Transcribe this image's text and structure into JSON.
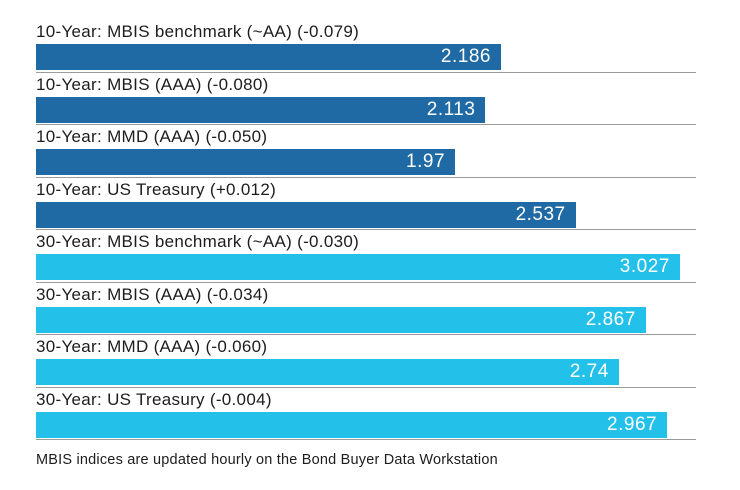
{
  "chart_data": {
    "type": "bar",
    "orientation": "horizontal",
    "title": "",
    "xlabel": "",
    "ylabel": "",
    "xlim": [
      0,
      3.1
    ],
    "grid": false,
    "legend": "none",
    "categories": [
      "10-Year: MBIS benchmark (~AA) (-0.079)",
      "10-Year: MBIS (AAA) (-0.080)",
      "10-Year: MMD (AAA) (-0.050)",
      "10-Year: US Treasury (+0.012)",
      "30-Year: MBIS benchmark (~AA) (-0.030)",
      "30-Year: MBIS (AAA) (-0.034)",
      "30-Year: MMD (AAA) (-0.060)",
      "30-Year: US Treasury (-0.004)"
    ],
    "values": [
      2.186,
      2.113,
      1.97,
      2.537,
      3.027,
      2.867,
      2.74,
      2.967
    ],
    "series": [
      {
        "name": "10-Year",
        "color": "#1f6aa4",
        "row_indexes": [
          0,
          1,
          2,
          3
        ]
      },
      {
        "name": "30-Year",
        "color": "#23c0e9",
        "row_indexes": [
          4,
          5,
          6,
          7
        ]
      }
    ],
    "colors": {
      "10-year": "#1f6aa4",
      "30-year": "#23c0e9"
    },
    "rows": [
      {
        "label": "10-Year: MBIS benchmark (~AA) (-0.079)",
        "value": 2.186,
        "display_value": "2.186",
        "change": "-0.079",
        "group": "10-year"
      },
      {
        "label": "10-Year: MBIS (AAA) (-0.080)",
        "value": 2.113,
        "display_value": "2.113",
        "change": "-0.080",
        "group": "10-year"
      },
      {
        "label": "10-Year: MMD (AAA) (-0.050)",
        "value": 1.97,
        "display_value": "1.97",
        "change": "-0.050",
        "group": "10-year"
      },
      {
        "label": "10-Year: US Treasury (+0.012)",
        "value": 2.537,
        "display_value": "2.537",
        "change": "+0.012",
        "group": "10-year"
      },
      {
        "label": "30-Year: MBIS benchmark (~AA) (-0.030)",
        "value": 3.027,
        "display_value": "3.027",
        "change": "-0.030",
        "group": "30-year"
      },
      {
        "label": "30-Year: MBIS (AAA) (-0.034)",
        "value": 2.867,
        "display_value": "2.867",
        "change": "-0.034",
        "group": "30-year"
      },
      {
        "label": "30-Year: MMD (AAA) (-0.060)",
        "value": 2.74,
        "display_value": "2.74",
        "change": "-0.060",
        "group": "30-year"
      },
      {
        "label": "30-Year: US Treasury (-0.004)",
        "value": 2.967,
        "display_value": "2.967",
        "change": "-0.004",
        "group": "30-year"
      }
    ]
  },
  "footer": {
    "note": "MBIS indices are updated hourly on the Bond Buyer Data Workstation"
  }
}
